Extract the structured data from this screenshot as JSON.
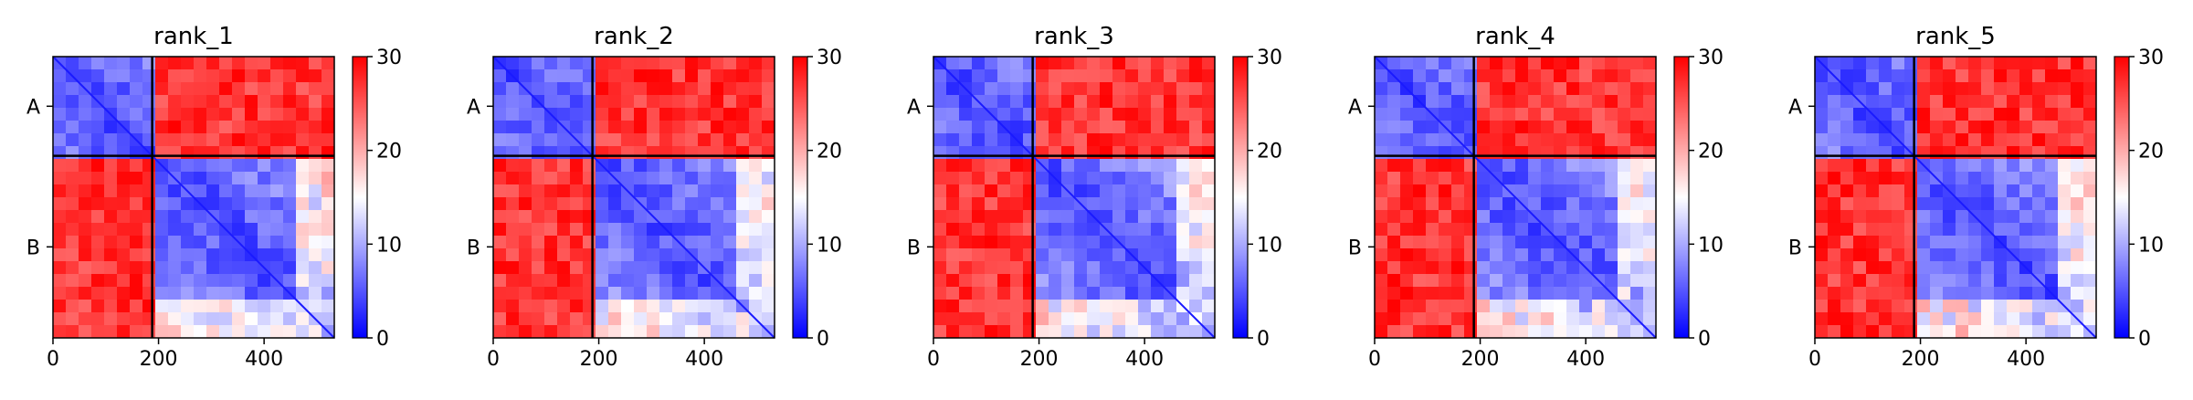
{
  "chart_data": [
    {
      "type": "heatmap",
      "title": "rank_1",
      "xticks": [
        "0",
        "200",
        "400"
      ],
      "xtick_values": [
        0,
        200,
        400
      ],
      "yticklabels": [
        "A",
        "B"
      ],
      "xlim": [
        0,
        533
      ],
      "chain_boundary": 188,
      "colorbar": {
        "ticks": [
          "0",
          "10",
          "20",
          "30"
        ],
        "range": [
          0,
          30
        ]
      },
      "colormap": [
        "#0000ff",
        "#ffffff",
        "#ff0000"
      ]
    },
    {
      "type": "heatmap",
      "title": "rank_2",
      "xticks": [
        "0",
        "200",
        "400"
      ],
      "xtick_values": [
        0,
        200,
        400
      ],
      "yticklabels": [
        "A",
        "B"
      ],
      "xlim": [
        0,
        533
      ],
      "chain_boundary": 188,
      "colorbar": {
        "ticks": [
          "0",
          "10",
          "20",
          "30"
        ],
        "range": [
          0,
          30
        ]
      },
      "colormap": [
        "#0000ff",
        "#ffffff",
        "#ff0000"
      ]
    },
    {
      "type": "heatmap",
      "title": "rank_3",
      "xticks": [
        "0",
        "200",
        "400"
      ],
      "xtick_values": [
        0,
        200,
        400
      ],
      "yticklabels": [
        "A",
        "B"
      ],
      "xlim": [
        0,
        533
      ],
      "chain_boundary": 188,
      "colorbar": {
        "ticks": [
          "0",
          "10",
          "20",
          "30"
        ],
        "range": [
          0,
          30
        ]
      },
      "colormap": [
        "#0000ff",
        "#ffffff",
        "#ff0000"
      ]
    },
    {
      "type": "heatmap",
      "title": "rank_4",
      "xticks": [
        "0",
        "200",
        "400"
      ],
      "xtick_values": [
        0,
        200,
        400
      ],
      "yticklabels": [
        "A",
        "B"
      ],
      "xlim": [
        0,
        533
      ],
      "chain_boundary": 188,
      "colorbar": {
        "ticks": [
          "0",
          "10",
          "20",
          "30"
        ],
        "range": [
          0,
          30
        ]
      },
      "colormap": [
        "#0000ff",
        "#ffffff",
        "#ff0000"
      ]
    },
    {
      "type": "heatmap",
      "title": "rank_5",
      "xticks": [
        "0",
        "200",
        "400"
      ],
      "xtick_values": [
        0,
        200,
        400
      ],
      "yticklabels": [
        "A",
        "B"
      ],
      "xlim": [
        0,
        533
      ],
      "chain_boundary": 188,
      "colorbar": {
        "ticks": [
          "0",
          "10",
          "20",
          "30"
        ],
        "range": [
          0,
          30
        ]
      },
      "colormap": [
        "#0000ff",
        "#ffffff",
        "#ff0000"
      ]
    }
  ]
}
